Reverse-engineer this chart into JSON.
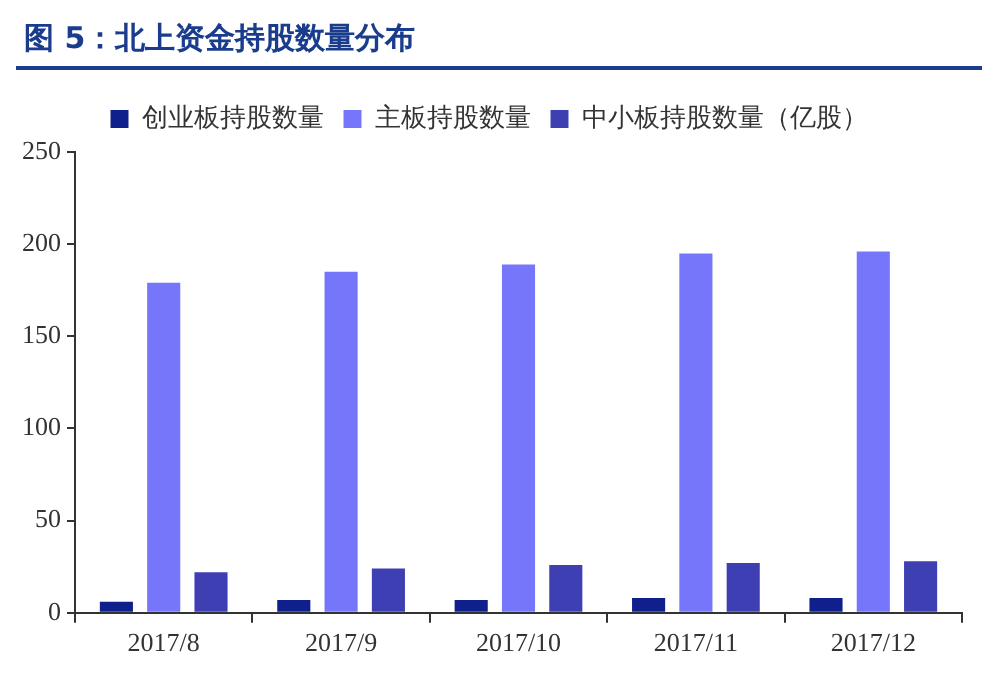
{
  "chart_data": {
    "type": "bar",
    "title": "图 5：北上资金持股数量分布",
    "categories": [
      "2017/8",
      "2017/9",
      "2017/10",
      "2017/11",
      "2017/12"
    ],
    "series": [
      {
        "name": "创业板持股数量",
        "color": "#0f1f8c",
        "values": [
          6,
          7,
          7,
          8,
          8
        ]
      },
      {
        "name": "主板持股数量",
        "color": "#7676fa",
        "values": [
          179,
          185,
          189,
          195,
          196
        ]
      },
      {
        "name": "中小板持股数量（亿股）",
        "color": "#3f3fb4",
        "values": [
          22,
          24,
          26,
          27,
          28
        ]
      }
    ],
    "ylim": [
      0,
      250
    ],
    "yticks": [
      0,
      50,
      100,
      150,
      200,
      250
    ],
    "grid": false,
    "legend": "top"
  }
}
